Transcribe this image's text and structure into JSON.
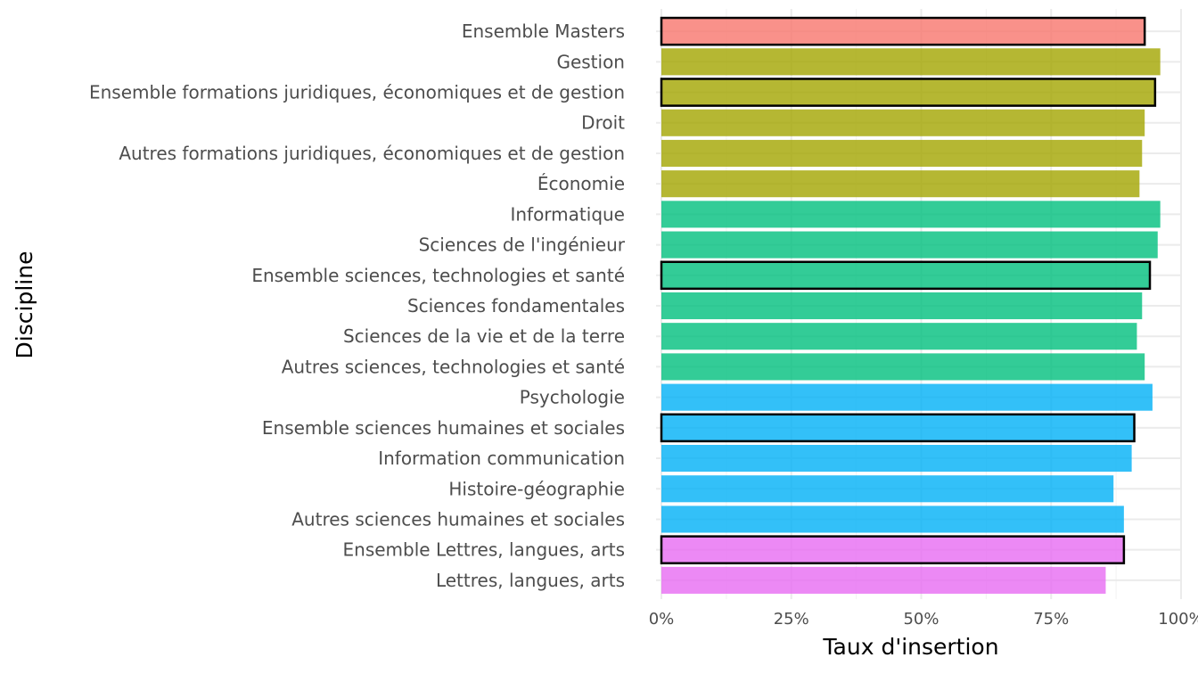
{
  "chart_data": {
    "type": "bar",
    "orientation": "horizontal",
    "xlabel": "Taux d'insertion",
    "ylabel": "Discipline",
    "xlim": [
      0,
      1
    ],
    "x_ticks": [
      "0%",
      "25%",
      "50%",
      "75%",
      "100%"
    ],
    "grid": true,
    "legend": "none",
    "categories": [
      "Ensemble Masters",
      "Gestion",
      "Ensemble formations juridiques, économiques et de gestion",
      "Droit",
      "Autres formations juridiques, économiques et de gestion",
      "Économie",
      "Informatique",
      "Sciences de l'ingénieur",
      "Ensemble sciences, technologies et santé",
      "Sciences fondamentales",
      "Sciences de la vie et de la terre",
      "Autres sciences, technologies et santé",
      "Psychologie",
      "Ensemble sciences humaines et sociales",
      "Information communication",
      "Histoire-géographie",
      "Autres sciences humaines et sociales",
      "Ensemble Lettres, langues, arts",
      "Lettres, langues, arts"
    ],
    "values": [
      0.93,
      0.96,
      0.95,
      0.93,
      0.925,
      0.92,
      0.96,
      0.955,
      0.94,
      0.925,
      0.915,
      0.93,
      0.945,
      0.91,
      0.905,
      0.87,
      0.89,
      0.89,
      0.855
    ],
    "groups": [
      "ensemble",
      "droit-eco-gestion",
      "droit-eco-gestion",
      "droit-eco-gestion",
      "droit-eco-gestion",
      "droit-eco-gestion",
      "sciences-tech-sante",
      "sciences-tech-sante",
      "sciences-tech-sante",
      "sciences-tech-sante",
      "sciences-tech-sante",
      "sciences-tech-sante",
      "shs",
      "shs",
      "shs",
      "shs",
      "shs",
      "lettres",
      "lettres"
    ],
    "outlined": [
      true,
      false,
      true,
      false,
      false,
      false,
      false,
      false,
      true,
      false,
      false,
      false,
      false,
      true,
      false,
      false,
      false,
      true,
      false
    ],
    "group_colors": {
      "ensemble": "#F8766D",
      "droit-eco-gestion": "#A3A500",
      "sciences-tech-sante": "#00BF7D",
      "shs": "#00B0F6",
      "lettres": "#E76BF3"
    }
  }
}
